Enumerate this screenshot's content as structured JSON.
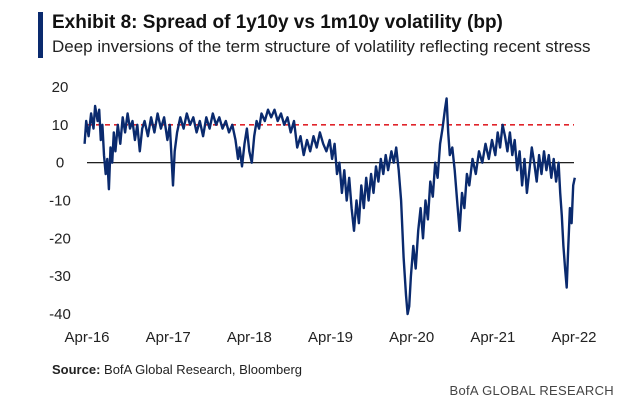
{
  "header": {
    "title": "Exhibit 8: Spread of 1y10y vs 1m10y volatility (bp)",
    "subtitle": "Deep inversions of the term structure of volatility reflecting recent stress"
  },
  "footer": {
    "source_label": "Source:",
    "source_text": "BofA Global Research, Bloomberg",
    "brand": "BofA GLOBAL RESEARCH"
  },
  "colors": {
    "line": "#0a2a6e",
    "reference": "#e0242b",
    "zero": "#000000",
    "accent": "#0a2a6e"
  },
  "chart_data": {
    "type": "line",
    "title": "Exhibit 8: Spread of 1y10y vs 1m10y volatility (bp)",
    "xlabel": "",
    "ylabel": "",
    "x_ticks": [
      "Apr-16",
      "Apr-17",
      "Apr-18",
      "Apr-19",
      "Apr-20",
      "Apr-21",
      "Apr-22"
    ],
    "y_ticks": [
      20,
      10,
      0,
      -10,
      -20,
      -30,
      -40
    ],
    "ylim": [
      -40,
      20
    ],
    "xlim": [
      2016.25,
      2022.25
    ],
    "reference_lines": [
      {
        "y": 10,
        "style": "dashed",
        "color": "#e0242b"
      },
      {
        "y": 0,
        "style": "solid",
        "color": "#000000"
      }
    ],
    "grid": false,
    "legend": "none",
    "series": [
      {
        "values": [
          [
            2016.22,
            5
          ],
          [
            2016.24,
            11
          ],
          [
            2016.27,
            7
          ],
          [
            2016.3,
            13
          ],
          [
            2016.33,
            9
          ],
          [
            2016.35,
            15
          ],
          [
            2016.38,
            11
          ],
          [
            2016.4,
            14
          ],
          [
            2016.42,
            6
          ],
          [
            2016.44,
            10
          ],
          [
            2016.46,
            2
          ],
          [
            2016.48,
            -3
          ],
          [
            2016.5,
            1
          ],
          [
            2016.52,
            -7
          ],
          [
            2016.54,
            4
          ],
          [
            2016.56,
            0
          ],
          [
            2016.58,
            8
          ],
          [
            2016.6,
            3
          ],
          [
            2016.63,
            10
          ],
          [
            2016.66,
            5
          ],
          [
            2016.69,
            12
          ],
          [
            2016.72,
            8
          ],
          [
            2016.75,
            13
          ],
          [
            2016.78,
            9
          ],
          [
            2016.81,
            11
          ],
          [
            2016.84,
            6
          ],
          [
            2016.87,
            10
          ],
          [
            2016.9,
            3
          ],
          [
            2016.93,
            9
          ],
          [
            2016.96,
            11
          ],
          [
            2017.0,
            7
          ],
          [
            2017.04,
            12
          ],
          [
            2017.08,
            8
          ],
          [
            2017.12,
            13
          ],
          [
            2017.16,
            9
          ],
          [
            2017.2,
            12
          ],
          [
            2017.24,
            6
          ],
          [
            2017.27,
            10
          ],
          [
            2017.29,
            2
          ],
          [
            2017.31,
            -6
          ],
          [
            2017.33,
            3
          ],
          [
            2017.36,
            8
          ],
          [
            2017.4,
            12
          ],
          [
            2017.44,
            9
          ],
          [
            2017.48,
            13
          ],
          [
            2017.52,
            10
          ],
          [
            2017.56,
            12
          ],
          [
            2017.6,
            8
          ],
          [
            2017.64,
            11
          ],
          [
            2017.68,
            7
          ],
          [
            2017.72,
            12
          ],
          [
            2017.76,
            9
          ],
          [
            2017.8,
            13
          ],
          [
            2017.84,
            10
          ],
          [
            2017.88,
            12
          ],
          [
            2017.92,
            9
          ],
          [
            2017.96,
            11
          ],
          [
            2018.0,
            8
          ],
          [
            2018.04,
            10
          ],
          [
            2018.08,
            6
          ],
          [
            2018.11,
            1
          ],
          [
            2018.13,
            4
          ],
          [
            2018.16,
            -1
          ],
          [
            2018.19,
            5
          ],
          [
            2018.22,
            9
          ],
          [
            2018.25,
            3
          ],
          [
            2018.28,
            0
          ],
          [
            2018.31,
            7
          ],
          [
            2018.34,
            11
          ],
          [
            2018.37,
            9
          ],
          [
            2018.4,
            13
          ],
          [
            2018.44,
            11
          ],
          [
            2018.48,
            14
          ],
          [
            2018.52,
            12
          ],
          [
            2018.56,
            14
          ],
          [
            2018.6,
            11
          ],
          [
            2018.64,
            13
          ],
          [
            2018.68,
            10
          ],
          [
            2018.72,
            12
          ],
          [
            2018.76,
            8
          ],
          [
            2018.8,
            11
          ],
          [
            2018.84,
            4
          ],
          [
            2018.88,
            7
          ],
          [
            2018.92,
            2
          ],
          [
            2018.96,
            6
          ],
          [
            2019.0,
            3
          ],
          [
            2019.04,
            7
          ],
          [
            2019.08,
            4
          ],
          [
            2019.12,
            8
          ],
          [
            2019.16,
            5
          ],
          [
            2019.2,
            3
          ],
          [
            2019.24,
            6
          ],
          [
            2019.27,
            1
          ],
          [
            2019.3,
            5
          ],
          [
            2019.33,
            -3
          ],
          [
            2019.36,
            0
          ],
          [
            2019.39,
            -8
          ],
          [
            2019.42,
            -2
          ],
          [
            2019.45,
            -10
          ],
          [
            2019.48,
            -4
          ],
          [
            2019.51,
            -12
          ],
          [
            2019.54,
            -18
          ],
          [
            2019.57,
            -10
          ],
          [
            2019.6,
            -16
          ],
          [
            2019.63,
            -6
          ],
          [
            2019.66,
            -12
          ],
          [
            2019.69,
            -4
          ],
          [
            2019.72,
            -10
          ],
          [
            2019.75,
            -3
          ],
          [
            2019.78,
            -8
          ],
          [
            2019.81,
            -1
          ],
          [
            2019.84,
            -5
          ],
          [
            2019.87,
            1
          ],
          [
            2019.9,
            -3
          ],
          [
            2019.93,
            2
          ],
          [
            2019.96,
            -2
          ],
          [
            2020.0,
            3
          ],
          [
            2020.03,
            0
          ],
          [
            2020.06,
            4
          ],
          [
            2020.09,
            -2
          ],
          [
            2020.12,
            -10
          ],
          [
            2020.15,
            -25
          ],
          [
            2020.18,
            -35
          ],
          [
            2020.2,
            -41
          ],
          [
            2020.22,
            -38
          ],
          [
            2020.24,
            -30
          ],
          [
            2020.27,
            -22
          ],
          [
            2020.3,
            -28
          ],
          [
            2020.33,
            -18
          ],
          [
            2020.36,
            -12
          ],
          [
            2020.39,
            -20
          ],
          [
            2020.42,
            -10
          ],
          [
            2020.45,
            -15
          ],
          [
            2020.48,
            -5
          ],
          [
            2020.51,
            -9
          ],
          [
            2020.54,
            0
          ],
          [
            2020.57,
            -4
          ],
          [
            2020.6,
            5
          ],
          [
            2020.63,
            9
          ],
          [
            2020.66,
            14
          ],
          [
            2020.68,
            17
          ],
          [
            2020.7,
            8
          ],
          [
            2020.72,
            2
          ],
          [
            2020.75,
            4
          ],
          [
            2020.78,
            -2
          ],
          [
            2020.81,
            -10
          ],
          [
            2020.84,
            -18
          ],
          [
            2020.87,
            -8
          ],
          [
            2020.9,
            -12
          ],
          [
            2020.93,
            -3
          ],
          [
            2020.96,
            -6
          ],
          [
            2021.0,
            1
          ],
          [
            2021.04,
            -3
          ],
          [
            2021.08,
            3
          ],
          [
            2021.12,
            0
          ],
          [
            2021.16,
            5
          ],
          [
            2021.2,
            1
          ],
          [
            2021.24,
            6
          ],
          [
            2021.28,
            2
          ],
          [
            2021.31,
            8
          ],
          [
            2021.34,
            4
          ],
          [
            2021.37,
            10
          ],
          [
            2021.4,
            7
          ],
          [
            2021.43,
            3
          ],
          [
            2021.46,
            8
          ],
          [
            2021.49,
            2
          ],
          [
            2021.52,
            6
          ],
          [
            2021.55,
            -2
          ],
          [
            2021.58,
            3
          ],
          [
            2021.61,
            -6
          ],
          [
            2021.64,
            1
          ],
          [
            2021.67,
            -8
          ],
          [
            2021.7,
            -2
          ],
          [
            2021.73,
            4
          ],
          [
            2021.76,
            0
          ],
          [
            2021.79,
            -5
          ],
          [
            2021.82,
            2
          ],
          [
            2021.85,
            -3
          ],
          [
            2021.88,
            3
          ],
          [
            2021.91,
            -2
          ],
          [
            2021.94,
            2
          ],
          [
            2021.97,
            -4
          ],
          [
            2022.0,
            1
          ],
          [
            2022.03,
            -5
          ],
          [
            2022.06,
            0
          ],
          [
            2022.08,
            -8
          ],
          [
            2022.1,
            -14
          ],
          [
            2022.12,
            -22
          ],
          [
            2022.14,
            -28
          ],
          [
            2022.16,
            -33
          ],
          [
            2022.18,
            -22
          ],
          [
            2022.2,
            -12
          ],
          [
            2022.22,
            -16
          ],
          [
            2022.24,
            -6
          ],
          [
            2022.26,
            -4
          ]
        ]
      }
    ]
  }
}
